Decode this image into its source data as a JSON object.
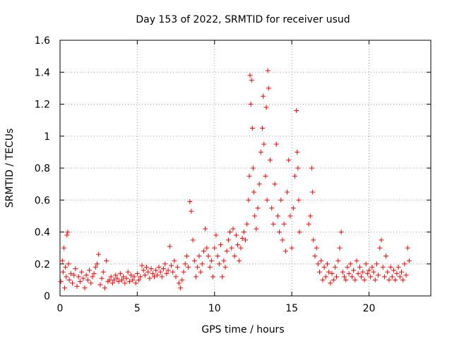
{
  "chart_data": {
    "type": "scatter",
    "title": "Day 153 of 2022, SRMTID for receiver usud",
    "xlabel": "GPS time / hours",
    "ylabel": "SRMTID / TECUs",
    "xlim": [
      0,
      24
    ],
    "ylim": [
      0,
      1.6
    ],
    "xticks": [
      0,
      5,
      10,
      15,
      20
    ],
    "yticks": [
      0,
      0.2,
      0.4,
      0.6,
      0.8,
      1,
      1.2,
      1.4,
      1.6
    ],
    "xtick_labels": [
      "0",
      "5",
      "10",
      "15",
      "20"
    ],
    "ytick_labels": [
      "0",
      "0.2",
      "0.4",
      "0.6",
      "0.8",
      "1",
      "1.2",
      "1.4",
      "1.6"
    ],
    "grid": true,
    "marker": "+",
    "color": "#ff0000",
    "series": [
      {
        "name": "SRMTID",
        "points": [
          [
            0.05,
            0.09
          ],
          [
            0.15,
            0.22
          ],
          [
            0.2,
            0.15
          ],
          [
            0.25,
            0.3
          ],
          [
            0.3,
            0.05
          ],
          [
            0.35,
            0.18
          ],
          [
            0.4,
            0.12
          ],
          [
            0.45,
            0.38
          ],
          [
            0.5,
            0.4
          ],
          [
            0.55,
            0.2
          ],
          [
            0.6,
            0.1
          ],
          [
            0.7,
            0.14
          ],
          [
            0.8,
            0.08
          ],
          [
            0.9,
            0.13
          ],
          [
            1.0,
            0.17
          ],
          [
            1.1,
            0.06
          ],
          [
            1.2,
            0.12
          ],
          [
            1.3,
            0.09
          ],
          [
            1.4,
            0.15
          ],
          [
            1.5,
            0.11
          ],
          [
            1.6,
            0.05
          ],
          [
            1.7,
            0.13
          ],
          [
            1.8,
            0.1
          ],
          [
            1.9,
            0.16
          ],
          [
            2.0,
            0.08
          ],
          [
            2.1,
            0.12
          ],
          [
            2.2,
            0.14
          ],
          [
            2.3,
            0.18
          ],
          [
            2.4,
            0.2
          ],
          [
            2.5,
            0.26
          ],
          [
            2.6,
            0.07
          ],
          [
            2.7,
            0.11
          ],
          [
            2.8,
            0.15
          ],
          [
            2.9,
            0.05
          ],
          [
            3.0,
            0.22
          ],
          [
            3.1,
            0.09
          ],
          [
            3.2,
            0.1
          ],
          [
            3.3,
            0.12
          ],
          [
            3.4,
            0.08
          ],
          [
            3.5,
            0.1
          ],
          [
            3.6,
            0.13
          ],
          [
            3.7,
            0.11
          ],
          [
            3.8,
            0.09
          ],
          [
            3.9,
            0.14
          ],
          [
            4.0,
            0.1
          ],
          [
            4.1,
            0.12
          ],
          [
            4.2,
            0.08
          ],
          [
            4.3,
            0.11
          ],
          [
            4.4,
            0.15
          ],
          [
            4.5,
            0.09
          ],
          [
            4.6,
            0.13
          ],
          [
            4.7,
            0.1
          ],
          [
            4.8,
            0.12
          ],
          [
            4.9,
            0.08
          ],
          [
            5.0,
            0.14
          ],
          [
            5.1,
            0.1
          ],
          [
            5.2,
            0.12
          ],
          [
            5.3,
            0.19
          ],
          [
            5.4,
            0.16
          ],
          [
            5.5,
            0.13
          ],
          [
            5.6,
            0.18
          ],
          [
            5.7,
            0.15
          ],
          [
            5.8,
            0.11
          ],
          [
            5.9,
            0.17
          ],
          [
            6.0,
            0.14
          ],
          [
            6.1,
            0.12
          ],
          [
            6.2,
            0.16
          ],
          [
            6.3,
            0.13
          ],
          [
            6.4,
            0.18
          ],
          [
            6.5,
            0.15
          ],
          [
            6.6,
            0.12
          ],
          [
            6.7,
            0.17
          ],
          [
            6.8,
            0.2
          ],
          [
            6.9,
            0.14
          ],
          [
            7.0,
            0.16
          ],
          [
            7.1,
            0.31
          ],
          [
            7.2,
            0.19
          ],
          [
            7.3,
            0.15
          ],
          [
            7.4,
            0.22
          ],
          [
            7.5,
            0.12
          ],
          [
            7.6,
            0.18
          ],
          [
            7.7,
            0.08
          ],
          [
            7.8,
            0.05
          ],
          [
            7.9,
            0.1
          ],
          [
            8.0,
            0.15
          ],
          [
            8.1,
            0.2
          ],
          [
            8.2,
            0.25
          ],
          [
            8.3,
            0.18
          ],
          [
            8.4,
            0.59
          ],
          [
            8.5,
            0.53
          ],
          [
            8.6,
            0.35
          ],
          [
            8.7,
            0.22
          ],
          [
            8.8,
            0.12
          ],
          [
            8.9,
            0.18
          ],
          [
            9.0,
            0.25
          ],
          [
            9.1,
            0.15
          ],
          [
            9.2,
            0.2
          ],
          [
            9.3,
            0.28
          ],
          [
            9.4,
            0.42
          ],
          [
            9.5,
            0.3
          ],
          [
            9.6,
            0.25
          ],
          [
            9.7,
            0.18
          ],
          [
            9.8,
            0.22
          ],
          [
            9.9,
            0.12
          ],
          [
            10.0,
            0.3
          ],
          [
            10.1,
            0.38
          ],
          [
            10.2,
            0.25
          ],
          [
            10.3,
            0.2
          ],
          [
            10.4,
            0.32
          ],
          [
            10.5,
            0.12
          ],
          [
            10.6,
            0.22
          ],
          [
            10.7,
            0.18
          ],
          [
            10.8,
            0.28
          ],
          [
            10.9,
            0.35
          ],
          [
            11.0,
            0.4
          ],
          [
            11.1,
            0.3
          ],
          [
            11.2,
            0.42
          ],
          [
            11.3,
            0.25
          ],
          [
            11.4,
            0.38
          ],
          [
            11.5,
            0.32
          ],
          [
            11.6,
            0.22
          ],
          [
            11.7,
            0.3
          ],
          [
            11.8,
            0.36
          ],
          [
            11.9,
            0.4
          ],
          [
            12.0,
            0.35
          ],
          [
            12.1,
            0.45
          ],
          [
            12.2,
            0.6
          ],
          [
            12.25,
            0.75
          ],
          [
            12.3,
            1.38
          ],
          [
            12.35,
            1.2
          ],
          [
            12.4,
            1.35
          ],
          [
            12.45,
            1.05
          ],
          [
            12.5,
            0.8
          ],
          [
            12.55,
            0.65
          ],
          [
            12.6,
            0.5
          ],
          [
            12.7,
            0.42
          ],
          [
            12.8,
            0.55
          ],
          [
            12.9,
            0.7
          ],
          [
            13.0,
            0.9
          ],
          [
            13.1,
            1.05
          ],
          [
            13.15,
            1.25
          ],
          [
            13.2,
            0.95
          ],
          [
            13.3,
            0.75
          ],
          [
            13.35,
            1.18
          ],
          [
            13.4,
            0.6
          ],
          [
            13.45,
            1.41
          ],
          [
            13.5,
            1.3
          ],
          [
            13.6,
            0.85
          ],
          [
            13.7,
            0.55
          ],
          [
            13.8,
            0.45
          ],
          [
            13.9,
            0.7
          ],
          [
            14.0,
            0.95
          ],
          [
            14.1,
            0.5
          ],
          [
            14.2,
            0.4
          ],
          [
            14.3,
            0.6
          ],
          [
            14.4,
            0.35
          ],
          [
            14.5,
            0.45
          ],
          [
            14.6,
            0.28
          ],
          [
            14.7,
            0.65
          ],
          [
            14.8,
            0.85
          ],
          [
            14.9,
            0.5
          ],
          [
            15.0,
            0.3
          ],
          [
            15.1,
            0.55
          ],
          [
            15.2,
            0.75
          ],
          [
            15.3,
            1.16
          ],
          [
            15.35,
            0.9
          ],
          [
            15.4,
            0.8
          ],
          [
            15.45,
            0.6
          ],
          [
            15.5,
            0.4
          ],
          [
            16.1,
            0.45
          ],
          [
            16.2,
            0.5
          ],
          [
            16.3,
            0.8
          ],
          [
            16.35,
            0.65
          ],
          [
            16.4,
            0.35
          ],
          [
            16.5,
            0.25
          ],
          [
            16.6,
            0.3
          ],
          [
            16.7,
            0.2
          ],
          [
            16.8,
            0.15
          ],
          [
            16.9,
            0.22
          ],
          [
            17.0,
            0.1
          ],
          [
            17.1,
            0.18
          ],
          [
            17.2,
            0.12
          ],
          [
            17.3,
            0.2
          ],
          [
            17.4,
            0.15
          ],
          [
            17.5,
            0.08
          ],
          [
            17.6,
            0.14
          ],
          [
            17.7,
            0.1
          ],
          [
            17.8,
            0.18
          ],
          [
            17.9,
            0.12
          ],
          [
            18.0,
            0.22
          ],
          [
            18.1,
            0.3
          ],
          [
            18.2,
            0.4
          ],
          [
            18.3,
            0.15
          ],
          [
            18.4,
            0.12
          ],
          [
            18.5,
            0.1
          ],
          [
            18.6,
            0.18
          ],
          [
            18.7,
            0.14
          ],
          [
            18.8,
            0.2
          ],
          [
            18.9,
            0.12
          ],
          [
            19.0,
            0.16
          ],
          [
            19.1,
            0.1
          ],
          [
            19.2,
            0.22
          ],
          [
            19.3,
            0.14
          ],
          [
            19.4,
            0.18
          ],
          [
            19.5,
            0.12
          ],
          [
            19.6,
            0.15
          ],
          [
            19.7,
            0.1
          ],
          [
            19.8,
            0.2
          ],
          [
            19.9,
            0.14
          ],
          [
            20.0,
            0.16
          ],
          [
            20.1,
            0.12
          ],
          [
            20.2,
            0.18
          ],
          [
            20.3,
            0.15
          ],
          [
            20.4,
            0.1
          ],
          [
            20.5,
            0.2
          ],
          [
            20.6,
            0.13
          ],
          [
            20.7,
            0.3
          ],
          [
            20.8,
            0.35
          ],
          [
            20.9,
            0.18
          ],
          [
            21.0,
            0.12
          ],
          [
            21.1,
            0.25
          ],
          [
            21.2,
            0.15
          ],
          [
            21.3,
            0.1
          ],
          [
            21.4,
            0.18
          ],
          [
            21.5,
            0.12
          ],
          [
            21.6,
            0.16
          ],
          [
            21.7,
            0.1
          ],
          [
            21.8,
            0.14
          ],
          [
            21.9,
            0.18
          ],
          [
            22.0,
            0.12
          ],
          [
            22.1,
            0.15
          ],
          [
            22.2,
            0.1
          ],
          [
            22.3,
            0.2
          ],
          [
            22.4,
            0.13
          ],
          [
            22.5,
            0.3
          ],
          [
            22.6,
            0.22
          ]
        ]
      }
    ]
  }
}
